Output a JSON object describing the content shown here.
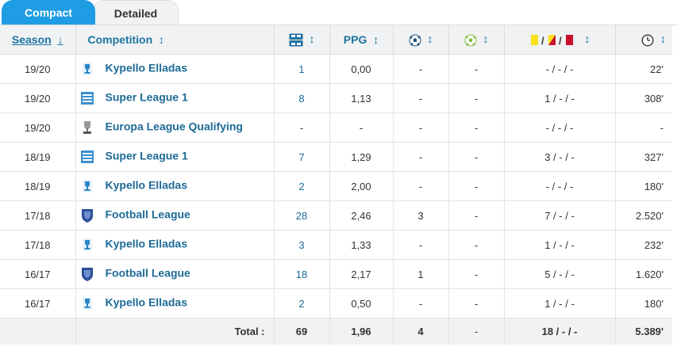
{
  "tabs": [
    "Compact",
    "Detailed"
  ],
  "headers": {
    "season": "Season",
    "season_sort": "↓",
    "competition": "Competition",
    "sort": "↕",
    "ppg": "PPG",
    "cards_sep": "/  /",
    "icons": {
      "appearances": "pitch-lineup-icon",
      "goals": "football-icon",
      "assists": "assist-ball-icon",
      "cards": "yellow-second-yellow-red-card-icons",
      "minutes": "clock-icon"
    }
  },
  "colors": {
    "tab_active": "#1f9de4",
    "link": "#1d6a96",
    "header_bg": "#f0f2f3",
    "yellow_card": "#f7e11b",
    "red_card": "#c8102e"
  },
  "rows": [
    {
      "season": "19/20",
      "emblem": "kypello-elladas-trophy-icon",
      "competition": "Kypello Elladas",
      "apps": "1",
      "ppg": "0,00",
      "goals": "-",
      "assists": "-",
      "cards": "- / - / -",
      "minutes": "22'"
    },
    {
      "season": "19/20",
      "emblem": "super-league-1-logo-icon",
      "competition": "Super League 1",
      "apps": "8",
      "ppg": "1,13",
      "goals": "-",
      "assists": "-",
      "cards": "1 / - / -",
      "minutes": "308'"
    },
    {
      "season": "19/20",
      "emblem": "europa-league-trophy-icon",
      "competition": "Europa League Qualifying",
      "apps": "-",
      "ppg": "-",
      "goals": "-",
      "assists": "-",
      "cards": "- / - / -",
      "minutes": "-"
    },
    {
      "season": "18/19",
      "emblem": "super-league-1-logo-icon",
      "competition": "Super League 1",
      "apps": "7",
      "ppg": "1,29",
      "goals": "-",
      "assists": "-",
      "cards": "3 / - / -",
      "minutes": "327'"
    },
    {
      "season": "18/19",
      "emblem": "kypello-elladas-trophy-icon",
      "competition": "Kypello Elladas",
      "apps": "2",
      "ppg": "2,00",
      "goals": "-",
      "assists": "-",
      "cards": "- / - / -",
      "minutes": "180'"
    },
    {
      "season": "17/18",
      "emblem": "football-league-shield-icon",
      "competition": "Football League",
      "apps": "28",
      "ppg": "2,46",
      "goals": "3",
      "assists": "-",
      "cards": "7 / - / -",
      "minutes": "2.520'"
    },
    {
      "season": "17/18",
      "emblem": "kypello-elladas-trophy-icon",
      "competition": "Kypello Elladas",
      "apps": "3",
      "ppg": "1,33",
      "goals": "-",
      "assists": "-",
      "cards": "1 / - / -",
      "minutes": "232'"
    },
    {
      "season": "16/17",
      "emblem": "football-league-shield-icon",
      "competition": "Football League",
      "apps": "18",
      "ppg": "2,17",
      "goals": "1",
      "assists": "-",
      "cards": "5 / - / -",
      "minutes": "1.620'"
    },
    {
      "season": "16/17",
      "emblem": "kypello-elladas-trophy-icon",
      "competition": "Kypello Elladas",
      "apps": "2",
      "ppg": "0,50",
      "goals": "-",
      "assists": "-",
      "cards": "1 / - / -",
      "minutes": "180'"
    }
  ],
  "total": {
    "label": "Total :",
    "apps": "69",
    "ppg": "1,96",
    "goals": "4",
    "assists": "-",
    "cards": "18 / - / -",
    "minutes": "5.389'"
  }
}
